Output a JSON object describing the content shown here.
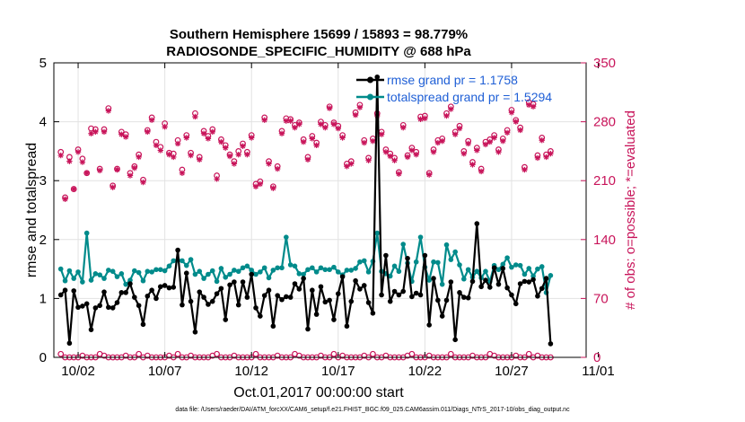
{
  "chart_data": {
    "type": "line",
    "title": "Southern Hemisphere 15699 / 15893 = 98.779%",
    "subtitle": "RADIOSONDE_SPECIFIC_HUMIDITY @ 688 hPa",
    "xlabel": "Oct.01,2017 00:00:00 start",
    "ylabel": "rmse and totalspread",
    "y2label": "# of obs: o=possible; *=evaluated",
    "footnote": "data file: /Users/raeder/DAI/ATM_forcXX/CAM6_setup/f.e21.FHIST_BGC.f09_025.CAM6assim.011/Diags_NTrS_2017-10/obs_diag_output.nc",
    "xlim": [
      0.6,
      31.3
    ],
    "ylim": [
      0,
      5
    ],
    "y2lim": [
      0,
      350
    ],
    "x_ticks": [
      {
        "v": 2,
        "label": "10/02"
      },
      {
        "v": 7,
        "label": "10/07"
      },
      {
        "v": 12,
        "label": "10/12"
      },
      {
        "v": 17,
        "label": "10/17"
      },
      {
        "v": 22,
        "label": "10/22"
      },
      {
        "v": 27,
        "label": "10/27"
      },
      {
        "v": 32,
        "label": "11/01"
      }
    ],
    "y_ticks": [
      0,
      1,
      2,
      3,
      4,
      5
    ],
    "y2_ticks": [
      0,
      70,
      140,
      210,
      280,
      350
    ],
    "x_start": 1.0,
    "x_step": 0.25,
    "series": [
      {
        "name": "rmse",
        "legend": "rmse grand pr = 1.1758",
        "color": "#000000",
        "axis": "left",
        "values": [
          1.06,
          1.14,
          0.24,
          1.13,
          0.85,
          0.87,
          0.91,
          0.47,
          0.84,
          0.88,
          1.11,
          0.85,
          0.84,
          0.93,
          1.1,
          1.1,
          1.25,
          1.02,
          0.88,
          0.56,
          1.04,
          1.14,
          1.0,
          1.2,
          1.22,
          1.18,
          1.19,
          1.82,
          0.89,
          1.43,
          0.95,
          0.43,
          1.11,
          1.02,
          0.9,
          0.95,
          1.08,
          1.17,
          0.64,
          1.23,
          1.28,
          0.89,
          1.28,
          1.02,
          1.41,
          0.84,
          0.7,
          1.05,
          1.14,
          0.53,
          1.05,
          0.98,
          1.03,
          1.02,
          1.25,
          1.16,
          1.34,
          0.48,
          1.14,
          0.73,
          1.2,
          0.94,
          0.97,
          0.64,
          1.08,
          1.37,
          0.53,
          0.95,
          1.3,
          1.16,
          1.22,
          0.93,
          0.75,
          4.76,
          1.06,
          1.73,
          0.95,
          1.12,
          1.06,
          1.12,
          1.68,
          1.03,
          1.09,
          1.06,
          1.73,
          0.55,
          1.34,
          0.97,
          0.7,
          0.97,
          1.28,
          0.3,
          1.1,
          1.02,
          1.01,
          1.29,
          2.27,
          1.2,
          1.31,
          1.19,
          1.52,
          1.24,
          1.51,
          1.18,
          1.06,
          0.91,
          1.25,
          1.29,
          1.28,
          1.32,
          1.04,
          1.17,
          1.34,
          0.23
        ]
      },
      {
        "name": "totalspread",
        "legend": "totalspread grand pr = 1.5294",
        "color": "#008b8b",
        "axis": "left",
        "values": [
          1.5,
          1.3,
          1.47,
          1.34,
          1.45,
          1.28,
          2.11,
          1.31,
          1.42,
          1.4,
          1.34,
          1.48,
          1.46,
          1.37,
          1.42,
          1.24,
          1.31,
          1.47,
          1.44,
          1.3,
          1.46,
          1.45,
          1.49,
          1.49,
          1.47,
          1.55,
          1.64,
          1.65,
          1.64,
          1.56,
          1.66,
          1.41,
          1.46,
          1.34,
          1.41,
          1.47,
          1.29,
          1.51,
          1.36,
          1.41,
          1.48,
          1.46,
          1.52,
          1.55,
          1.48,
          1.41,
          1.45,
          1.52,
          1.35,
          1.48,
          1.52,
          1.52,
          2.04,
          1.57,
          1.55,
          1.42,
          1.41,
          1.49,
          1.52,
          1.45,
          1.52,
          1.49,
          1.49,
          1.53,
          1.45,
          1.4,
          1.48,
          1.48,
          1.51,
          1.62,
          1.64,
          1.45,
          1.63,
          2.11,
          1.46,
          1.42,
          1.38,
          1.55,
          1.46,
          1.92,
          1.6,
          1.29,
          1.62,
          2.04,
          1.53,
          1.31,
          1.62,
          1.61,
          1.24,
          1.91,
          1.66,
          1.79,
          1.57,
          1.33,
          1.49,
          1.36,
          1.46,
          1.35,
          1.46,
          1.29,
          1.56,
          1.49,
          1.58,
          1.69,
          1.53,
          1.57,
          1.56,
          1.41,
          1.51,
          1.38,
          1.5,
          1.54,
          1.1,
          1.39
        ]
      },
      {
        "name": "possible",
        "legend": "",
        "color": "#c8145a",
        "axis": "right",
        "marker": "o",
        "values": [
          244,
          190,
          238,
          200,
          247,
          236,
          219,
          272,
          271,
          224,
          271,
          296,
          204,
          224,
          268,
          265,
          219,
          227,
          241,
          211,
          270,
          285,
          256,
          250,
          278,
          243,
          242,
          258,
          223,
          264,
          243,
          290,
          238,
          269,
          263,
          271,
          216,
          259,
          252,
          241,
          233,
          245,
          254,
          244,
          264,
          206,
          209,
          285,
          233,
          203,
          227,
          269,
          284,
          283,
          276,
          279,
          259,
          238,
          263,
          255,
          280,
          276,
          298,
          279,
          275,
          264,
          230,
          233,
          291,
          300,
          258,
          237,
          260,
          290,
          268,
          247,
          242,
          237,
          220,
          276,
          240,
          249,
          244,
          286,
          287,
          219,
          247,
          258,
          260,
          290,
          298,
          268,
          275,
          245,
          257,
          232,
          249,
          224,
          256,
          259,
          264,
          247,
          260,
          270,
          294,
          282,
          273,
          226,
          303,
          301,
          240,
          261,
          241,
          245
        ]
      },
      {
        "name": "evaluated",
        "legend": "",
        "color": "#c8145a",
        "axis": "right",
        "marker": "*",
        "values": [
          240,
          188,
          233,
          200,
          244,
          232,
          219,
          266,
          268,
          222,
          268,
          293,
          202,
          223,
          265,
          262,
          216,
          225,
          238,
          208,
          268,
          282,
          252,
          246,
          274,
          241,
          238,
          254,
          219,
          261,
          240,
          286,
          235,
          266,
          260,
          268,
          212,
          256,
          249,
          239,
          230,
          241,
          251,
          241,
          261,
          203,
          206,
          282,
          230,
          201,
          224,
          266,
          281,
          281,
          273,
          277,
          256,
          235,
          260,
          252,
          277,
          273,
          296,
          277,
          272,
          261,
          227,
          230,
          288,
          297,
          255,
          234,
          257,
          287,
          265,
          244,
          239,
          234,
          218,
          273,
          238,
          246,
          241,
          283,
          284,
          217,
          244,
          255,
          257,
          287,
          295,
          265,
          272,
          242,
          254,
          229,
          246,
          221,
          253,
          256,
          261,
          244,
          257,
          267,
          291,
          280,
          270,
          223,
          300,
          298,
          237,
          258,
          238,
          242
        ]
      }
    ]
  }
}
